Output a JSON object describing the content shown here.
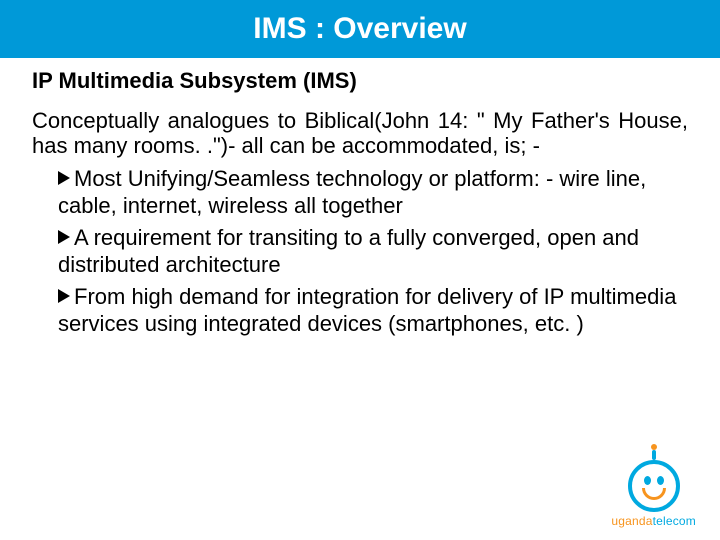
{
  "colors": {
    "titlebar_bg": "#0099d8",
    "title_text": "#ffffff",
    "body_text": "#000000",
    "logo_blue": "#00a9e0",
    "logo_orange": "#f7941e",
    "page_bg": "#ffffff"
  },
  "title": "IMS : Overview",
  "subtitle": "IP Multimedia  Subsystem (IMS)",
  "intro": "Conceptually analogues to Biblical(John 14: \" My Father's House, has many rooms. .\")- all can be accommodated, is; -",
  "bullets": [
    "Most Unifying/Seamless technology or platform: - wire line, cable, internet, wireless all together",
    "A requirement for transiting to a fully converged, open and distributed architecture",
    "From high demand for integration for delivery of IP multimedia services using integrated devices (smartphones, etc. )"
  ],
  "logo": {
    "word1": "uganda",
    "word2": "telecom"
  }
}
